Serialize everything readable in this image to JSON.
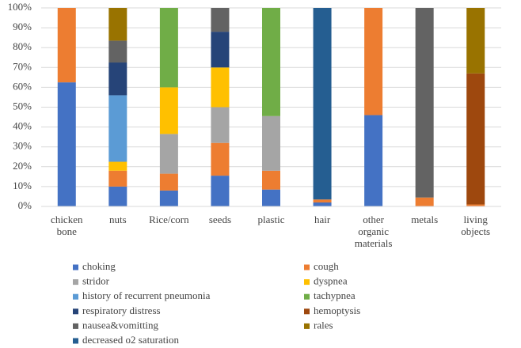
{
  "chart_data": {
    "type": "stacked_bar_100",
    "categories": [
      "chicken bone",
      "nuts",
      "Rice/corn",
      "seeds",
      "plastic",
      "hair",
      "other organic materials",
      "metals",
      "living objects"
    ],
    "series": [
      {
        "name": "choking",
        "color": "#4472c4",
        "values": [
          62.5,
          10,
          8,
          15.5,
          8.5,
          2,
          46,
          0,
          0
        ]
      },
      {
        "name": "cough",
        "color": "#ed7d31",
        "values": [
          37.5,
          8,
          8.5,
          16.5,
          9.5,
          1.5,
          54,
          4.5,
          1
        ]
      },
      {
        "name": "stridor",
        "color": "#a5a5a5",
        "values": [
          0,
          0,
          20,
          18,
          27.5,
          0,
          0,
          0,
          0
        ]
      },
      {
        "name": "dyspnea",
        "color": "#ffc000",
        "values": [
          0,
          4.5,
          23.5,
          20,
          0,
          0,
          0,
          0,
          0
        ]
      },
      {
        "name": "history of recurrent pneumonia",
        "color": "#5b9bd5",
        "values": [
          0,
          33.5,
          0,
          0,
          0,
          0,
          0,
          0,
          0
        ]
      },
      {
        "name": "tachypnea",
        "color": "#70ad47",
        "values": [
          0,
          0,
          40,
          0,
          54.5,
          0,
          0,
          0,
          0
        ]
      },
      {
        "name": "respiratory distress",
        "color": "#264478",
        "values": [
          0,
          16.5,
          0,
          18,
          0,
          0,
          0,
          0,
          0
        ]
      },
      {
        "name": "hemoptysis",
        "color": "#9e480e",
        "values": [
          0,
          0,
          0,
          0,
          0,
          0,
          0,
          0,
          66
        ]
      },
      {
        "name": "nausea&vomitting",
        "color": "#636363",
        "values": [
          0,
          11,
          0,
          12,
          0,
          0,
          0,
          95.5,
          0
        ]
      },
      {
        "name": "rales",
        "color": "#997300",
        "values": [
          0,
          16.5,
          0,
          0,
          0,
          0,
          0,
          0,
          33
        ]
      },
      {
        "name": "decreased o2 saturation",
        "color": "#255e91",
        "values": [
          0,
          0,
          0,
          0,
          0,
          96.5,
          0,
          0,
          0
        ]
      }
    ],
    "ylim": [
      0,
      100
    ],
    "yticks": [
      {
        "value": 0,
        "label": "0%"
      },
      {
        "value": 10,
        "label": "10%"
      },
      {
        "value": 20,
        "label": "20%"
      },
      {
        "value": 30,
        "label": "30%"
      },
      {
        "value": 40,
        "label": "40%"
      },
      {
        "value": 50,
        "label": "50%"
      },
      {
        "value": 60,
        "label": "60%"
      },
      {
        "value": 70,
        "label": "70%"
      },
      {
        "value": 80,
        "label": "80%"
      },
      {
        "value": 90,
        "label": "90%"
      },
      {
        "value": 100,
        "label": "100%"
      }
    ],
    "grid": true
  }
}
